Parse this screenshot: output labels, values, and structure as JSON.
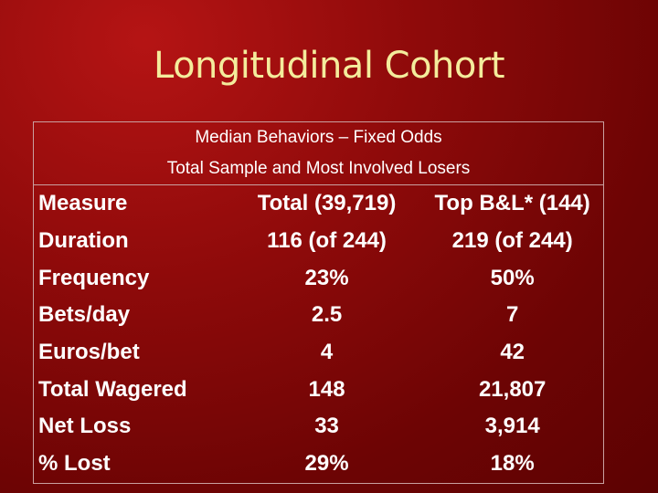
{
  "slide": {
    "title": "Longitudinal Cohort",
    "subtitle_line1": "Median Behaviors – Fixed Odds",
    "subtitle_line2": "Total Sample and Most Involved Losers"
  },
  "table": {
    "headers": [
      "Measure",
      "Total (39,719)",
      "Top B&L* (144)"
    ],
    "rows": [
      [
        "Duration",
        "116 (of 244)",
        "219 (of 244)"
      ],
      [
        "Frequency",
        "23%",
        "50%"
      ],
      [
        "Bets/day",
        "2.5",
        "7"
      ],
      [
        "Euros/bet",
        "4",
        "42"
      ],
      [
        "Total Wagered",
        "148",
        "21,807"
      ],
      [
        "Net Loss",
        "33",
        "3,914"
      ],
      [
        "% Lost",
        "29%",
        "18%"
      ]
    ]
  },
  "colors": {
    "background": "#8e0a0a",
    "title": "#f4ec9c",
    "text": "#ffffff"
  }
}
